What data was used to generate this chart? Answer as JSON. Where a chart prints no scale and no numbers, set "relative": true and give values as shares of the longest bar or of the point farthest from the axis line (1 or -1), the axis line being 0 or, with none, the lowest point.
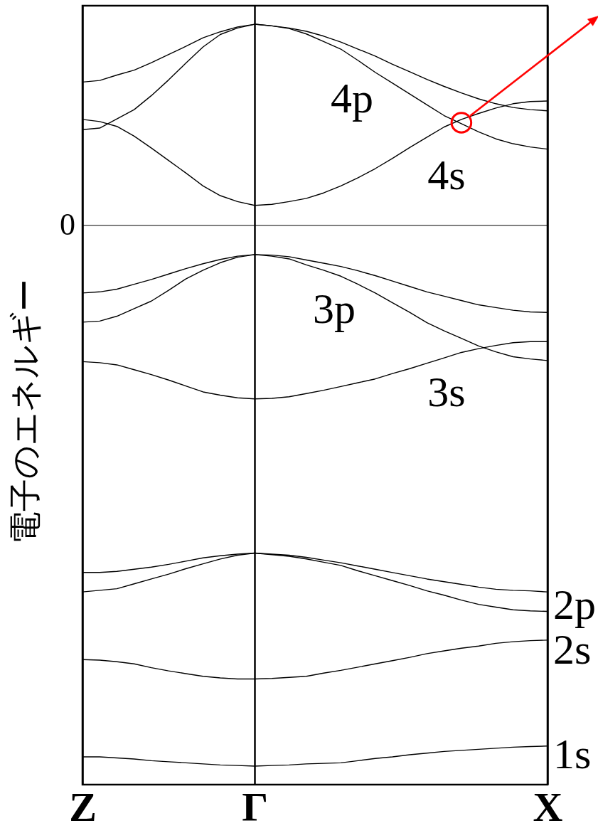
{
  "chart_data": {
    "type": "line",
    "relative": true,
    "ylabel": "電子のエネルギー",
    "tick_labels": "x",
    "grid": "x",
    "categories": [
      "Z",
      null,
      null,
      null,
      null,
      null,
      null,
      null,
      null,
      null,
      "Γ",
      null,
      null,
      null,
      null,
      null,
      null,
      null,
      null,
      null,
      null,
      null,
      null,
      null,
      null,
      null,
      null,
      "X"
    ],
    "series": [
      {
        "color": "#000000",
        "values": [
          0.265,
          0.268,
          0.278,
          0.287,
          0.301,
          0.316,
          0.331,
          0.347,
          0.358,
          0.367,
          0.372,
          0.369,
          0.365,
          0.359,
          0.35,
          0.339,
          0.326,
          0.313,
          0.298,
          0.284,
          0.27,
          0.257,
          0.245,
          0.234,
          0.225,
          0.218,
          0.214,
          0.212
        ]
      },
      {
        "color": "#000000",
        "values": [
          0.177,
          0.18,
          0.197,
          0.214,
          0.24,
          0.269,
          0.3,
          0.33,
          0.353,
          0.365,
          0.372,
          0.369,
          0.364,
          0.354,
          0.34,
          0.326,
          0.305,
          0.283,
          0.263,
          0.243,
          0.223,
          0.203,
          0.188,
          0.173,
          0.16,
          0.151,
          0.145,
          0.141
        ]
      },
      {
        "color": "#000000",
        "values": [
          0.196,
          0.192,
          0.183,
          0.165,
          0.143,
          0.12,
          0.097,
          0.073,
          0.055,
          0.044,
          0.037,
          0.039,
          0.044,
          0.05,
          0.06,
          0.073,
          0.088,
          0.105,
          0.124,
          0.144,
          0.163,
          0.182,
          0.196,
          0.207,
          0.217,
          0.225,
          0.229,
          0.23
        ]
      },
      {
        "color": "#000000",
        "values": [
          -0.125,
          -0.123,
          -0.118,
          -0.109,
          -0.1,
          -0.09,
          -0.08,
          -0.071,
          -0.063,
          -0.057,
          -0.054,
          -0.055,
          -0.058,
          -0.064,
          -0.07,
          -0.076,
          -0.084,
          -0.093,
          -0.103,
          -0.113,
          -0.123,
          -0.131,
          -0.139,
          -0.147,
          -0.152,
          -0.157,
          -0.16,
          -0.161
        ]
      },
      {
        "color": "#000000",
        "values": [
          -0.179,
          -0.177,
          -0.168,
          -0.154,
          -0.14,
          -0.12,
          -0.099,
          -0.083,
          -0.069,
          -0.059,
          -0.054,
          -0.057,
          -0.062,
          -0.073,
          -0.083,
          -0.094,
          -0.109,
          -0.125,
          -0.143,
          -0.161,
          -0.18,
          -0.195,
          -0.209,
          -0.223,
          -0.234,
          -0.243,
          -0.247,
          -0.25
        ]
      },
      {
        "color": "#000000",
        "values": [
          -0.252,
          -0.254,
          -0.258,
          -0.267,
          -0.276,
          -0.286,
          -0.297,
          -0.308,
          -0.314,
          -0.319,
          -0.321,
          -0.32,
          -0.317,
          -0.311,
          -0.305,
          -0.298,
          -0.291,
          -0.284,
          -0.274,
          -0.265,
          -0.255,
          -0.245,
          -0.235,
          -0.228,
          -0.222,
          -0.217,
          -0.215,
          -0.215
        ]
      },
      {
        "color": "#000000",
        "values": [
          -0.642,
          -0.642,
          -0.64,
          -0.636,
          -0.632,
          -0.627,
          -0.621,
          -0.615,
          -0.611,
          -0.608,
          -0.606,
          -0.608,
          -0.61,
          -0.614,
          -0.619,
          -0.624,
          -0.63,
          -0.636,
          -0.642,
          -0.648,
          -0.654,
          -0.659,
          -0.664,
          -0.669,
          -0.673,
          -0.675,
          -0.676,
          -0.678
        ]
      },
      {
        "color": "#000000",
        "values": [
          -0.678,
          -0.675,
          -0.672,
          -0.663,
          -0.654,
          -0.645,
          -0.635,
          -0.626,
          -0.617,
          -0.61,
          -0.606,
          -0.609,
          -0.612,
          -0.617,
          -0.623,
          -0.629,
          -0.639,
          -0.648,
          -0.657,
          -0.666,
          -0.676,
          -0.684,
          -0.693,
          -0.701,
          -0.706,
          -0.711,
          -0.713,
          -0.714
        ]
      },
      {
        "color": "#000000",
        "values": [
          -0.803,
          -0.804,
          -0.807,
          -0.811,
          -0.818,
          -0.824,
          -0.829,
          -0.834,
          -0.837,
          -0.839,
          -0.839,
          -0.838,
          -0.836,
          -0.834,
          -0.828,
          -0.823,
          -0.817,
          -0.811,
          -0.805,
          -0.799,
          -0.792,
          -0.787,
          -0.782,
          -0.778,
          -0.773,
          -0.77,
          -0.768,
          -0.767
        ]
      },
      {
        "color": "#000000",
        "values": [
          -0.983,
          -0.983,
          -0.985,
          -0.987,
          -0.99,
          -0.992,
          -0.994,
          -0.996,
          -0.998,
          -0.999,
          -1,
          -0.999,
          -0.998,
          -0.996,
          -0.995,
          -0.994,
          -0.99,
          -0.986,
          -0.983,
          -0.979,
          -0.976,
          -0.973,
          -0.971,
          -0.969,
          -0.967,
          -0.965,
          -0.964,
          -0.963
        ]
      },
      {
        "type": "scatter",
        "color": "#ff0000",
        "marker": "circle",
        "values": [
          null,
          null,
          null,
          null,
          null,
          null,
          null,
          null,
          null,
          null,
          null,
          null,
          null,
          null,
          null,
          null,
          null,
          null,
          null,
          null,
          null,
          null,
          0.19,
          null,
          null,
          null,
          null,
          null
        ]
      }
    ],
    "ref_lines": [
      {
        "axis": "y",
        "value": 0,
        "label": "0",
        "color": "#000000"
      }
    ],
    "annotations": [
      "4p",
      "4s",
      "3p",
      "3s",
      "2p",
      "2s",
      "1s"
    ]
  }
}
